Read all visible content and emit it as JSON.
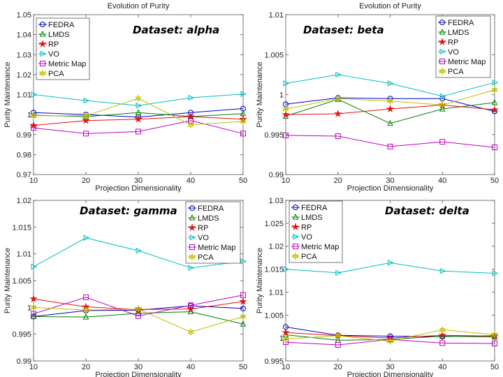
{
  "chart_data": [
    {
      "type": "line",
      "title": "Evolution of Purity",
      "annotation": "Dataset: alpha",
      "xlabel": "Projection Dimensionality",
      "ylabel": "Purity Maintenance",
      "x": [
        10,
        20,
        30,
        40,
        50
      ],
      "xlim": [
        10,
        50
      ],
      "ylim": [
        0.97,
        1.05
      ],
      "yticks": [
        0.97,
        0.98,
        0.99,
        1.0,
        1.01,
        1.02,
        1.03,
        1.04,
        1.05
      ],
      "ytick_labels": [
        "0.97",
        "0.98",
        "0.99",
        "1",
        "1.01",
        "1.02",
        "1.03",
        "1.04",
        "1.05"
      ],
      "legend": "top-left",
      "series": [
        {
          "name": "FEDRA",
          "values": [
            1.001,
            1.0,
            0.9987,
            1.001,
            1.003
          ]
        },
        {
          "name": "LMDS",
          "values": [
            0.9997,
            0.999,
            1.001,
            0.999,
            1.0005
          ]
        },
        {
          "name": "RP",
          "values": [
            0.9946,
            0.997,
            0.9977,
            0.999,
            0.9977
          ]
        },
        {
          "name": "VO",
          "values": [
            1.01,
            1.007,
            1.0045,
            1.0084,
            1.0103
          ]
        },
        {
          "name": "Metric Map",
          "values": [
            0.9933,
            0.9905,
            0.9915,
            0.997,
            0.9905
          ]
        },
        {
          "name": "PCA",
          "values": [
            0.9994,
            0.9994,
            1.0081,
            0.9949,
            0.9966
          ]
        }
      ]
    },
    {
      "type": "line",
      "title": "Evolution of Purity",
      "annotation": "Dataset: beta",
      "xlabel": "Projection Dimensionality",
      "ylabel": "Purity Maintenance",
      "x": [
        10,
        20,
        30,
        40,
        50
      ],
      "xlim": [
        10,
        50
      ],
      "ylim": [
        0.99,
        1.01
      ],
      "yticks": [
        0.99,
        0.995,
        1.0,
        1.005,
        1.01
      ],
      "ytick_labels": [
        "0.99",
        "0.995",
        "1",
        "1.005",
        "1.01"
      ],
      "legend": "top-right",
      "series": [
        {
          "name": "FEDRA",
          "values": [
            0.9988,
            0.9996,
            0.9995,
            0.9995,
            0.9979
          ]
        },
        {
          "name": "LMDS",
          "values": [
            0.9973,
            0.9994,
            0.9964,
            0.9982,
            0.999
          ]
        },
        {
          "name": "RP",
          "values": [
            0.9975,
            0.9976,
            0.9982,
            0.9987,
            0.9981
          ]
        },
        {
          "name": "VO",
          "values": [
            1.0014,
            1.0025,
            1.0014,
            0.9998,
            1.0015
          ]
        },
        {
          "name": "Metric Map",
          "values": [
            0.9949,
            0.9948,
            0.9935,
            0.9941,
            0.9934
          ]
        },
        {
          "name": "PCA",
          "values": [
            0.9982,
            0.9995,
            0.9992,
            0.9987,
            1.0006
          ]
        }
      ]
    },
    {
      "type": "line",
      "title": "",
      "annotation": "Dataset: gamma",
      "xlabel": "Projection Dimensionality",
      "ylabel": "Purity Maintenance",
      "x": [
        10,
        20,
        30,
        40,
        50
      ],
      "xlim": [
        10,
        50
      ],
      "ylim": [
        0.99,
        1.02
      ],
      "yticks": [
        0.99,
        0.995,
        1.0,
        1.005,
        1.01,
        1.015,
        1.02
      ],
      "ytick_labels": [
        "0.99",
        "0.995",
        "1",
        "1.005",
        "1.01",
        "1.015",
        "1.02"
      ],
      "legend": "top-right",
      "series": [
        {
          "name": "FEDRA",
          "values": [
            0.9983,
            0.9994,
            0.9995,
            1.0003,
            0.9998
          ]
        },
        {
          "name": "LMDS",
          "values": [
            0.9983,
            0.9982,
            0.9989,
            0.9992,
            0.9969
          ]
        },
        {
          "name": "RP",
          "values": [
            1.0016,
            1.0001,
            0.9996,
            0.9997,
            1.0011
          ]
        },
        {
          "name": "VO",
          "values": [
            1.0076,
            1.013,
            1.0106,
            1.0074,
            1.0086
          ]
        },
        {
          "name": "Metric Map",
          "values": [
            0.9988,
            1.0019,
            0.9984,
            1.0004,
            1.0023
          ]
        },
        {
          "name": "PCA",
          "values": [
            1.0,
            0.9995,
            0.9997,
            0.9954,
            0.9983
          ]
        }
      ]
    },
    {
      "type": "line",
      "title": "",
      "annotation": "Dataset: delta",
      "xlabel": "Projection Dimensionality",
      "ylabel": "Purity Maintenance",
      "x": [
        10,
        20,
        30,
        40,
        50
      ],
      "xlim": [
        10,
        50
      ],
      "ylim": [
        0.995,
        1.03
      ],
      "yticks": [
        0.995,
        1.0,
        1.005,
        1.01,
        1.015,
        1.02,
        1.025,
        1.03
      ],
      "ytick_labels": [
        "0.995",
        "1",
        "1.005",
        "1.01",
        "1.015",
        "1.02",
        "1.025",
        "1.03"
      ],
      "legend": "top-left",
      "series": [
        {
          "name": "FEDRA",
          "values": [
            1.0024,
            1.0006,
            1.0004,
            1.0003,
            1.0005
          ]
        },
        {
          "name": "LMDS",
          "values": [
            1.0007,
            0.9995,
            0.9997,
            1.0004,
            1.0002
          ]
        },
        {
          "name": "RP",
          "values": [
            1.0012,
            1.0005,
            1.0,
            1.0006,
            1.0004
          ]
        },
        {
          "name": "VO",
          "values": [
            1.015,
            1.0142,
            1.0164,
            1.0146,
            1.0141
          ]
        },
        {
          "name": "Metric Map",
          "values": [
            0.9991,
            0.9985,
            0.9997,
            0.9989,
            0.9988
          ]
        },
        {
          "name": "PCA",
          "values": [
            0.9998,
            1.0005,
            0.9993,
            1.0018,
            1.0007
          ]
        }
      ]
    }
  ],
  "series_style": {
    "FEDRA": {
      "color": "#0000cc",
      "marker": "circle"
    },
    "LMDS": {
      "color": "#008000",
      "marker": "triangle-up"
    },
    "RP": {
      "color": "#e01010",
      "marker": "star"
    },
    "VO": {
      "color": "#00bfbf",
      "marker": "triangle-right"
    },
    "Metric Map": {
      "color": "#bf00bf",
      "marker": "square"
    },
    "PCA": {
      "color": "#bfbf00",
      "marker": "hexagram"
    }
  }
}
